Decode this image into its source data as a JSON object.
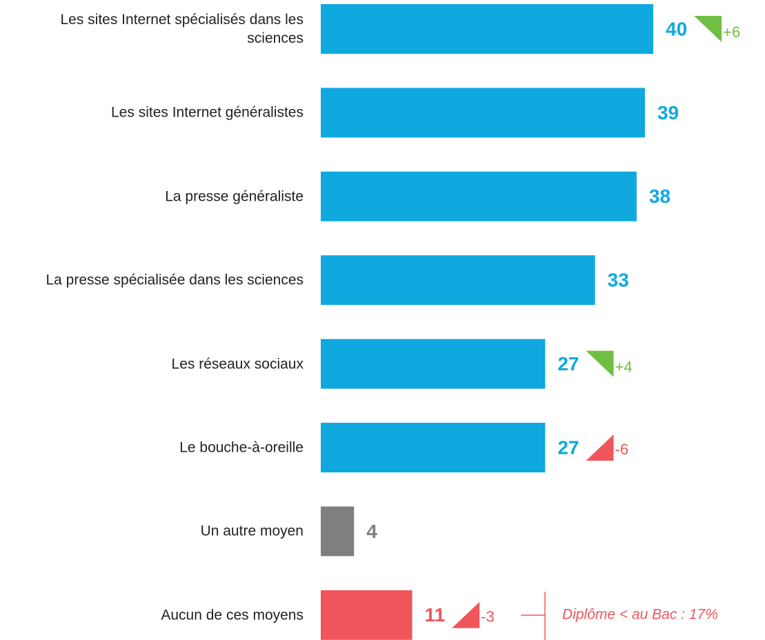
{
  "chart_data": {
    "type": "hbar",
    "categories": [
      "Les sites Internet spécialisés dans les sciences",
      "Les sites Internet généralistes",
      "La presse généraliste",
      "La presse spécialisée dans les sciences",
      "Les réseaux sociaux",
      "Le bouche-à-oreille",
      "Un autre moyen",
      "Aucun de ces moyens"
    ],
    "values": [
      40,
      39,
      38,
      33,
      27,
      27,
      4,
      11
    ],
    "colors": [
      "#0fa8df",
      "#0fa8df",
      "#0fa8df",
      "#0fa8df",
      "#0fa8df",
      "#0fa8df",
      "#7f7f7f",
      "#f0565b"
    ],
    "xlim": [
      0,
      40
    ],
    "changes": {
      "values": [
        6,
        null,
        null,
        null,
        4,
        -6,
        null,
        -3
      ],
      "value_labels": [
        "+6",
        null,
        null,
        null,
        "+4",
        "-6",
        null,
        "-3"
      ],
      "up_color": "#70bf44",
      "down_color": "#f0565b"
    },
    "annotation": "Diplôme < au Bac : 17%"
  }
}
